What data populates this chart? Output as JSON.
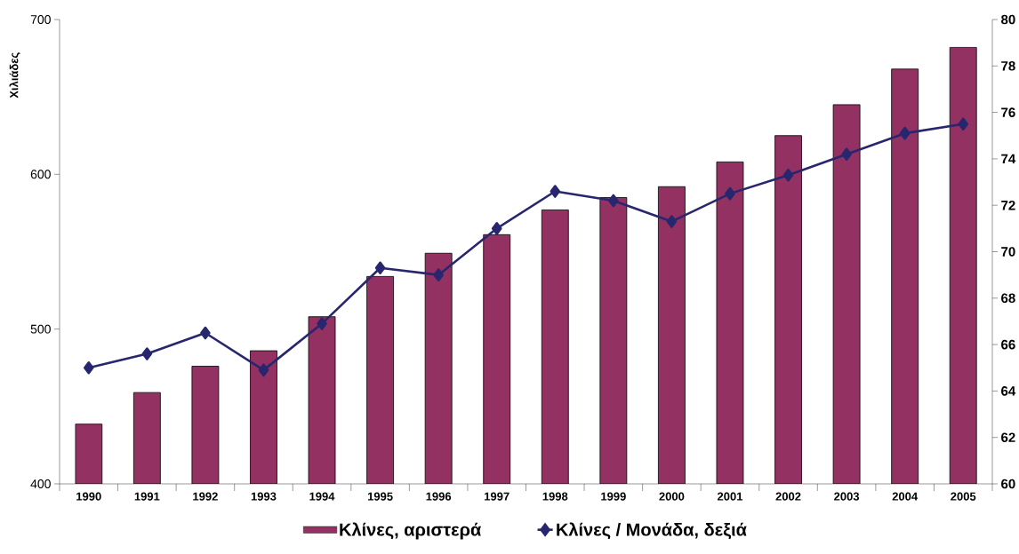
{
  "chart_data": {
    "type": "bar",
    "ylabel": "Χιλιάδες",
    "categories": [
      "1990",
      "1991",
      "1992",
      "1993",
      "1994",
      "1995",
      "1996",
      "1997",
      "1998",
      "1999",
      "2000",
      "2001",
      "2002",
      "2003",
      "2004",
      "2005"
    ],
    "series": [
      {
        "name": "Κλίνες, αριστερά",
        "color": "#943163",
        "values": [
          438.6,
          459,
          476,
          486,
          508,
          534,
          549,
          561,
          577,
          585,
          592,
          608,
          625,
          645,
          668,
          682
        ]
      },
      {
        "name": "Κλίνες / Μονάδα, δεξιά",
        "type": "line",
        "axis": "y2",
        "color": "#27266f",
        "marker": "diamond",
        "values": [
          65.0,
          65.6,
          66.5,
          64.9,
          66.9,
          69.3,
          69.0,
          71.0,
          72.6,
          72.2,
          71.3,
          72.5,
          73.3,
          74.2,
          75.1,
          75.5
        ]
      }
    ],
    "ylim": [
      400,
      700
    ],
    "yticks": [
      400,
      500,
      600,
      700
    ],
    "y2lim": [
      60,
      80
    ],
    "y2ticks": [
      60,
      62,
      64,
      66,
      68,
      70,
      72,
      74,
      76,
      78,
      80
    ],
    "legend": "bottom",
    "grid": false
  }
}
